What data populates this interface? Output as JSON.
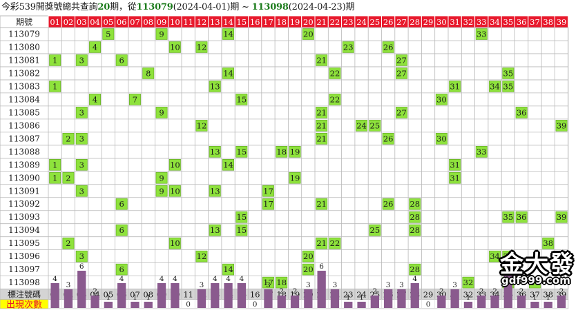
{
  "title": {
    "prefix": "今彩539開獎號總共查詢",
    "count": "20",
    "mid1": "期，從",
    "start_period": "113079",
    "start_date": "(2024-04-01)",
    "mid2": "期 ~ ",
    "end_period": "113098",
    "end_date": "(2024-04-23)",
    "suffix": "期"
  },
  "header_label": "期號",
  "footer_label": "標注號碼",
  "count_label": "出現次數",
  "logo": {
    "main": "金大發",
    "sub": "gdf999.com"
  },
  "colors": {
    "header_red": "#e8192c",
    "hit_green": "#8ee23c",
    "bar_purple": "#8a5a8e",
    "count_yellow": "#ffff00",
    "count_label_red": "#e8192c",
    "footer_gray": "#d4d4d4",
    "grid_line": "#b9b9b9"
  },
  "chart_data": {
    "type": "table",
    "columns": [
      "01",
      "02",
      "03",
      "04",
      "05",
      "06",
      "07",
      "08",
      "09",
      "10",
      "11",
      "12",
      "13",
      "14",
      "15",
      "16",
      "17",
      "18",
      "19",
      "20",
      "21",
      "22",
      "23",
      "24",
      "25",
      "26",
      "27",
      "28",
      "29",
      "30",
      "31",
      "32",
      "33",
      "34",
      "35",
      "36",
      "37",
      "38",
      "39"
    ],
    "draws": [
      {
        "period": "113079",
        "numbers": [
          5,
          9,
          14,
          20,
          33
        ]
      },
      {
        "period": "113080",
        "numbers": [
          4,
          10,
          12,
          23,
          26
        ]
      },
      {
        "period": "113081",
        "numbers": [
          1,
          3,
          6,
          21,
          27
        ]
      },
      {
        "period": "113082",
        "numbers": [
          8,
          14,
          22,
          27,
          35
        ]
      },
      {
        "period": "113083",
        "numbers": [
          1,
          13,
          31,
          34,
          35
        ]
      },
      {
        "period": "113084",
        "numbers": [
          4,
          7,
          15,
          22,
          30
        ]
      },
      {
        "period": "113085",
        "numbers": [
          3,
          9,
          21,
          27,
          36
        ]
      },
      {
        "period": "113086",
        "numbers": [
          12,
          21,
          24,
          25,
          39
        ]
      },
      {
        "period": "113087",
        "numbers": [
          2,
          3,
          21,
          26,
          30
        ]
      },
      {
        "period": "113088",
        "numbers": [
          13,
          15,
          18,
          19,
          33
        ]
      },
      {
        "period": "113089",
        "numbers": [
          1,
          3,
          10,
          14,
          31
        ]
      },
      {
        "period": "113090",
        "numbers": [
          1,
          2,
          9,
          19,
          31
        ]
      },
      {
        "period": "113091",
        "numbers": [
          3,
          9,
          10,
          13,
          17
        ]
      },
      {
        "period": "113092",
        "numbers": [
          6,
          17,
          21,
          26,
          28
        ]
      },
      {
        "period": "113093",
        "numbers": [
          15,
          28,
          35,
          36,
          39
        ]
      },
      {
        "period": "113094",
        "numbers": [
          6,
          13,
          15,
          25,
          28
        ]
      },
      {
        "period": "113095",
        "numbers": [
          2,
          10,
          21,
          22,
          38
        ]
      },
      {
        "period": "113096",
        "numbers": [
          3,
          12,
          20,
          34,
          35
        ]
      },
      {
        "period": "113097",
        "numbers": [
          6,
          14,
          20,
          28,
          35
        ]
      },
      {
        "period": "113098",
        "numbers": [
          17,
          18,
          32,
          35,
          37
        ]
      }
    ],
    "counts": [
      4,
      3,
      6,
      2,
      1,
      4,
      1,
      1,
      4,
      4,
      0,
      3,
      4,
      4,
      4,
      0,
      3,
      2,
      2,
      3,
      6,
      3,
      1,
      1,
      2,
      3,
      3,
      4,
      0,
      2,
      3,
      1,
      2,
      2,
      6,
      2,
      1,
      1,
      2
    ]
  }
}
